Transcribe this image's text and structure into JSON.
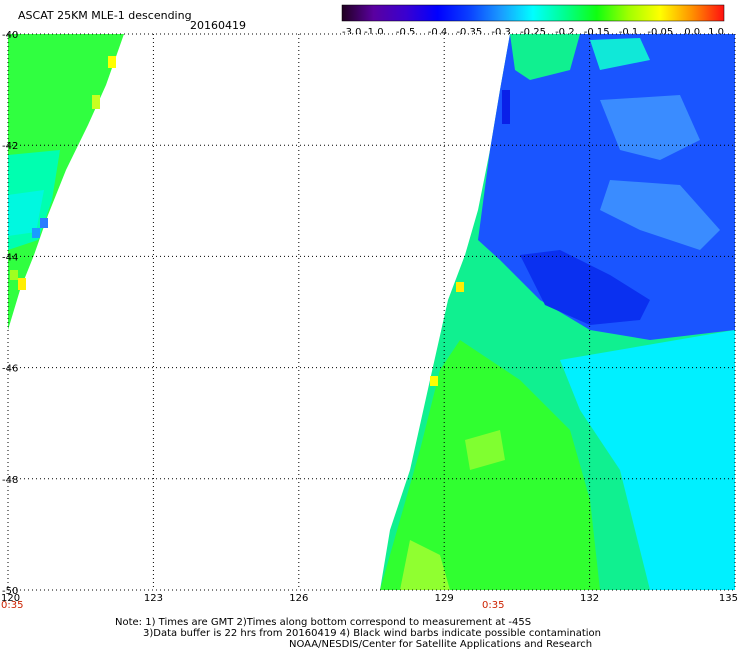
{
  "header": {
    "product": "ASCAT 25KM MLE-1 descending",
    "date": "20160419"
  },
  "colorbar": {
    "labels": [
      "-3.0",
      "-1.0",
      "-0.5",
      "-0.4",
      "-0.35",
      "-0.3",
      "-0.25",
      "-0.2",
      "-0.15",
      "-0.1",
      "-0.05",
      "0.0",
      "1.0"
    ],
    "colors": [
      "#200020",
      "#5a00a0",
      "#3a00d0",
      "#0000ff",
      "#0a40ff",
      "#1a9cff",
      "#00ffff",
      "#00ff90",
      "#10ff10",
      "#a0ff00",
      "#ffff00",
      "#ff9000",
      "#ff1010"
    ]
  },
  "map": {
    "y_ticks": [
      "-40",
      "-42",
      "-44",
      "-46",
      "-48",
      "-50"
    ],
    "x_ticks": [
      "120",
      "123",
      "126",
      "129",
      "132",
      "135"
    ],
    "time_labels": [
      "0:35",
      "0:35"
    ],
    "swath_colors": {
      "blue": "#1a55ff",
      "deep_blue": "#0a30f0",
      "light_blue": "#3a8cff",
      "cyan": "#00f0ff",
      "aqua_green": "#00ffb0",
      "green": "#30ff30",
      "lime": "#a0ff20",
      "yellow": "#ffff00"
    }
  },
  "notes": {
    "line1": "Note: 1) Times are GMT 2)Times along bottom correspond to measurement at -45S",
    "line2": "3)Data buffer is 22 hrs from 20160419 4) Black wind barbs indicate possible contamination",
    "line3": "NOAA/NESDIS/Center for Satellite Applications and Research"
  }
}
